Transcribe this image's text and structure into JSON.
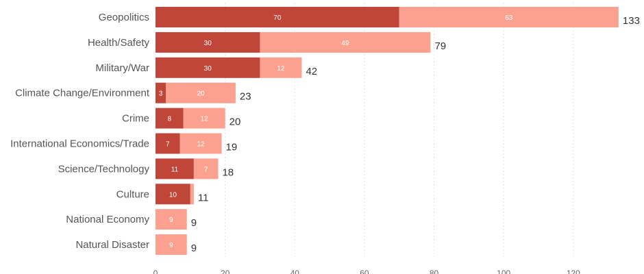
{
  "chart_data": {
    "type": "bar",
    "orientation": "horizontal",
    "stacked": true,
    "categories": [
      "Geopolitics",
      "Health/Safety",
      "Military/War",
      "Climate Change/Environment",
      "Crime",
      "International Economics/Trade",
      "Science/Technology",
      "Culture",
      "National Economy",
      "Natural Disaster"
    ],
    "series": [
      {
        "values": [
          70,
          30,
          30,
          3,
          8,
          7,
          11,
          10,
          0,
          0
        ],
        "color": "#c0463a"
      },
      {
        "values": [
          63,
          49,
          12,
          20,
          12,
          12,
          7,
          1,
          9,
          9
        ],
        "color": "#fca190"
      }
    ],
    "totals": [
      133,
      79,
      42,
      23,
      20,
      19,
      18,
      11,
      9,
      9
    ],
    "xlim": [
      0,
      140
    ],
    "xticks": [
      0,
      20,
      40,
      60,
      80,
      100,
      120
    ],
    "grid": true,
    "title": "",
    "xlabel": "",
    "ylabel": ""
  }
}
